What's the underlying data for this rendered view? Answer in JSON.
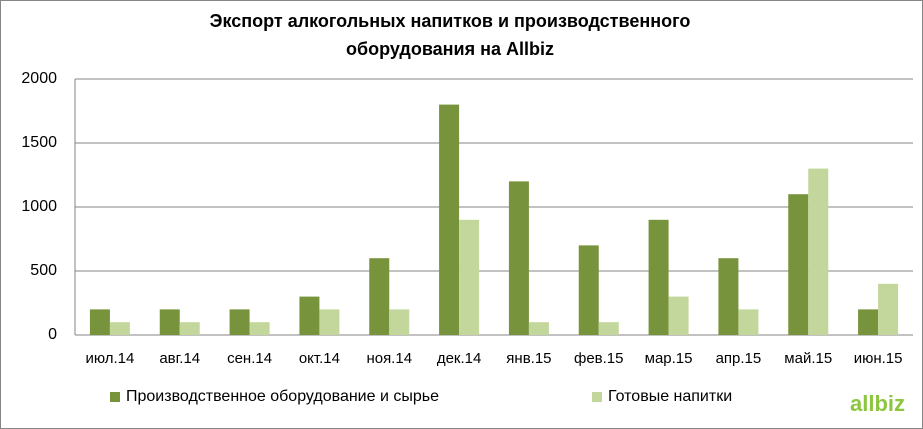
{
  "chart_data": {
    "type": "bar",
    "title": [
      "Экспорт алкогольных напитков и производственного",
      "оборудования на Allbiz"
    ],
    "categories": [
      "июл.14",
      "авг.14",
      "сен.14",
      "окт.14",
      "ноя.14",
      "дек.14",
      "янв.15",
      "фев.15",
      "мар.15",
      "апр.15",
      "май.15",
      "июн.15"
    ],
    "series": [
      {
        "name": "Производственное оборудование и сырье",
        "color": "#77933c",
        "values": [
          200,
          200,
          200,
          300,
          600,
          1800,
          1200,
          700,
          900,
          600,
          1100,
          200
        ]
      },
      {
        "name": "Готовые напитки",
        "color": "#c3d69b",
        "values": [
          100,
          100,
          100,
          200,
          200,
          900,
          100,
          100,
          300,
          200,
          1300,
          400
        ]
      }
    ],
    "ylim": [
      0,
      2000
    ],
    "yticks": [
      0,
      500,
      1000,
      1500,
      2000
    ],
    "grid": true,
    "legend": "bottom",
    "logo": "allbiz"
  }
}
